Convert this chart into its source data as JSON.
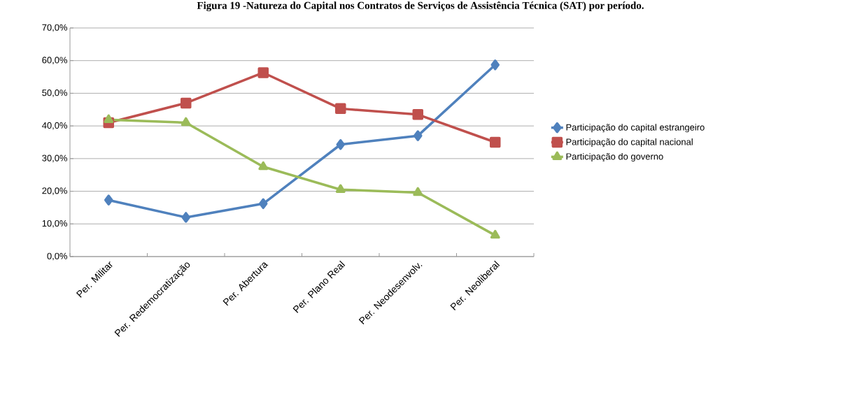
{
  "chart_data": {
    "type": "line",
    "title": "Figura 19 -Natureza do Capital nos Contratos de Serviços de Assistência Técnica (SAT) por período.",
    "categories": [
      "Per. Militar",
      "Per. Redemocratização",
      "Per. Abertura",
      "Per. Plano Real",
      "Per. Neodesenvolv.",
      "Per. Neoliberal"
    ],
    "series": [
      {
        "name": "Participação do capital estrangeiro",
        "color": "#4f81bd",
        "marker": "diamond",
        "values": [
          17.3,
          12.0,
          16.2,
          34.3,
          37.0,
          58.7
        ]
      },
      {
        "name": "Participação do capital nacional",
        "color": "#c0504d",
        "marker": "square",
        "values": [
          41.0,
          47.0,
          56.3,
          45.3,
          43.5,
          35.0
        ]
      },
      {
        "name": "Participação do governo",
        "color": "#9bbb59",
        "marker": "triangle",
        "values": [
          41.9,
          41.0,
          27.5,
          20.5,
          19.6,
          6.5
        ]
      }
    ],
    "ylim": [
      0,
      70
    ],
    "yticks": [
      {
        "value": 0,
        "label": "0,0%"
      },
      {
        "value": 10,
        "label": "10,0%"
      },
      {
        "value": 20,
        "label": "20,0%"
      },
      {
        "value": 30,
        "label": "30,0%"
      },
      {
        "value": 40,
        "label": "40,0%"
      },
      {
        "value": 50,
        "label": "50,0%"
      },
      {
        "value": 60,
        "label": "60,0%"
      },
      {
        "value": 70,
        "label": "70,0%"
      }
    ],
    "grid": "y",
    "legend": "right",
    "line_style": "solid"
  }
}
